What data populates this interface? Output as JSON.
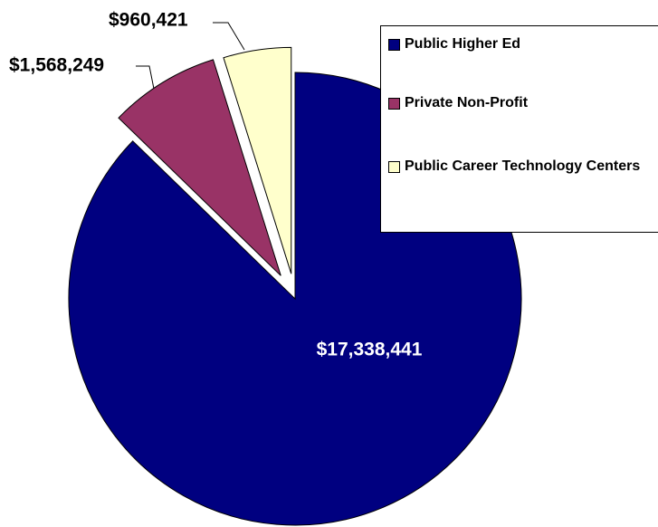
{
  "chart_data": {
    "type": "pie",
    "categories": [
      "Public Higher Ed",
      "Private Non-Profit",
      "Public Career Technology Centers"
    ],
    "values": [
      17338441,
      1568249,
      960421
    ],
    "value_labels": [
      "$17,338,441",
      "$1,568,249",
      "$960,421"
    ],
    "colors": [
      "#000080",
      "#993366",
      "#ffffcc"
    ],
    "legend": "top-right"
  }
}
